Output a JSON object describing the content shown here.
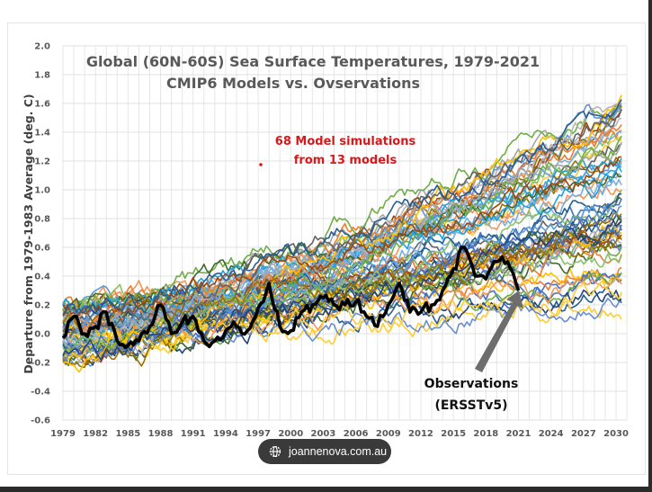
{
  "source_badge": {
    "label": "joannenova.com.au",
    "icon": "globe-icon"
  },
  "chart_data": {
    "type": "line",
    "title": "Global (60N-60S) Sea Surface Temperatures, 1979-2021",
    "subtitle": "CMIP6 Models vs. Ovservations",
    "xlabel": "",
    "ylabel": "Departure from 1979-1983 Average (deg. C)",
    "ylim": [
      -0.6,
      2.0
    ],
    "xlim": [
      1979,
      2031
    ],
    "yticks": [
      "2.0",
      "1.8",
      "1.6",
      "1.4",
      "1.2",
      "1.0",
      "0.8",
      "0.6",
      "0.4",
      "0.2",
      "0.0",
      "-0.2",
      "-0.4",
      "-0.6"
    ],
    "xticks": [
      "1979",
      "1982",
      "1985",
      "1988",
      "1991",
      "1994",
      "1997",
      "2000",
      "2003",
      "2006",
      "2009",
      "2012",
      "2015",
      "2018",
      "2021",
      "2024",
      "2027",
      "2030"
    ],
    "grid": true,
    "annotations": {
      "models_note_line1": "68 Model simulations",
      "models_note_line2": "from 13 models",
      "obs_label_line1": "Observations",
      "obs_label_line2": "(ERSSTv5)"
    },
    "observations": {
      "name": "Observations (ERSSTv5)",
      "color": "#000000",
      "x": [
        1979,
        1980,
        1981,
        1982,
        1983,
        1984,
        1985,
        1986,
        1987,
        1988,
        1989,
        1990,
        1991,
        1992,
        1993,
        1994,
        1995,
        1996,
        1997,
        1998,
        1999,
        2000,
        2001,
        2002,
        2003,
        2004,
        2005,
        2006,
        2007,
        2008,
        2009,
        2010,
        2011,
        2012,
        2013,
        2014,
        2015,
        2016,
        2017,
        2018,
        2019,
        2020,
        2021
      ],
      "y": [
        -0.03,
        0.12,
        0.0,
        0.05,
        0.15,
        -0.05,
        -0.08,
        -0.05,
        0.05,
        0.2,
        0.0,
        0.08,
        0.12,
        -0.05,
        -0.05,
        0.02,
        0.05,
        0.02,
        0.18,
        0.35,
        0.05,
        0.02,
        0.15,
        0.2,
        0.25,
        0.2,
        0.2,
        0.22,
        0.12,
        0.05,
        0.2,
        0.35,
        0.15,
        0.15,
        0.2,
        0.3,
        0.45,
        0.6,
        0.4,
        0.38,
        0.5,
        0.5,
        0.3
      ]
    },
    "model_ensemble": {
      "count": 68,
      "models": 13,
      "colors": [
        "#4472c4",
        "#ed7d31",
        "#a5a5a5",
        "#ffc000",
        "#5b9bd5",
        "#70ad47",
        "#264478",
        "#9e480e",
        "#636363",
        "#997300",
        "#255e91",
        "#43682b",
        "#698ed0",
        "#f1975a",
        "#b7b7b7",
        "#ffcd33",
        "#7cafdd",
        "#8cc168",
        "#1fa3e0"
      ],
      "start_range": [
        -0.2,
        0.2
      ],
      "end_range_2030": [
        0.2,
        1.7
      ]
    }
  }
}
